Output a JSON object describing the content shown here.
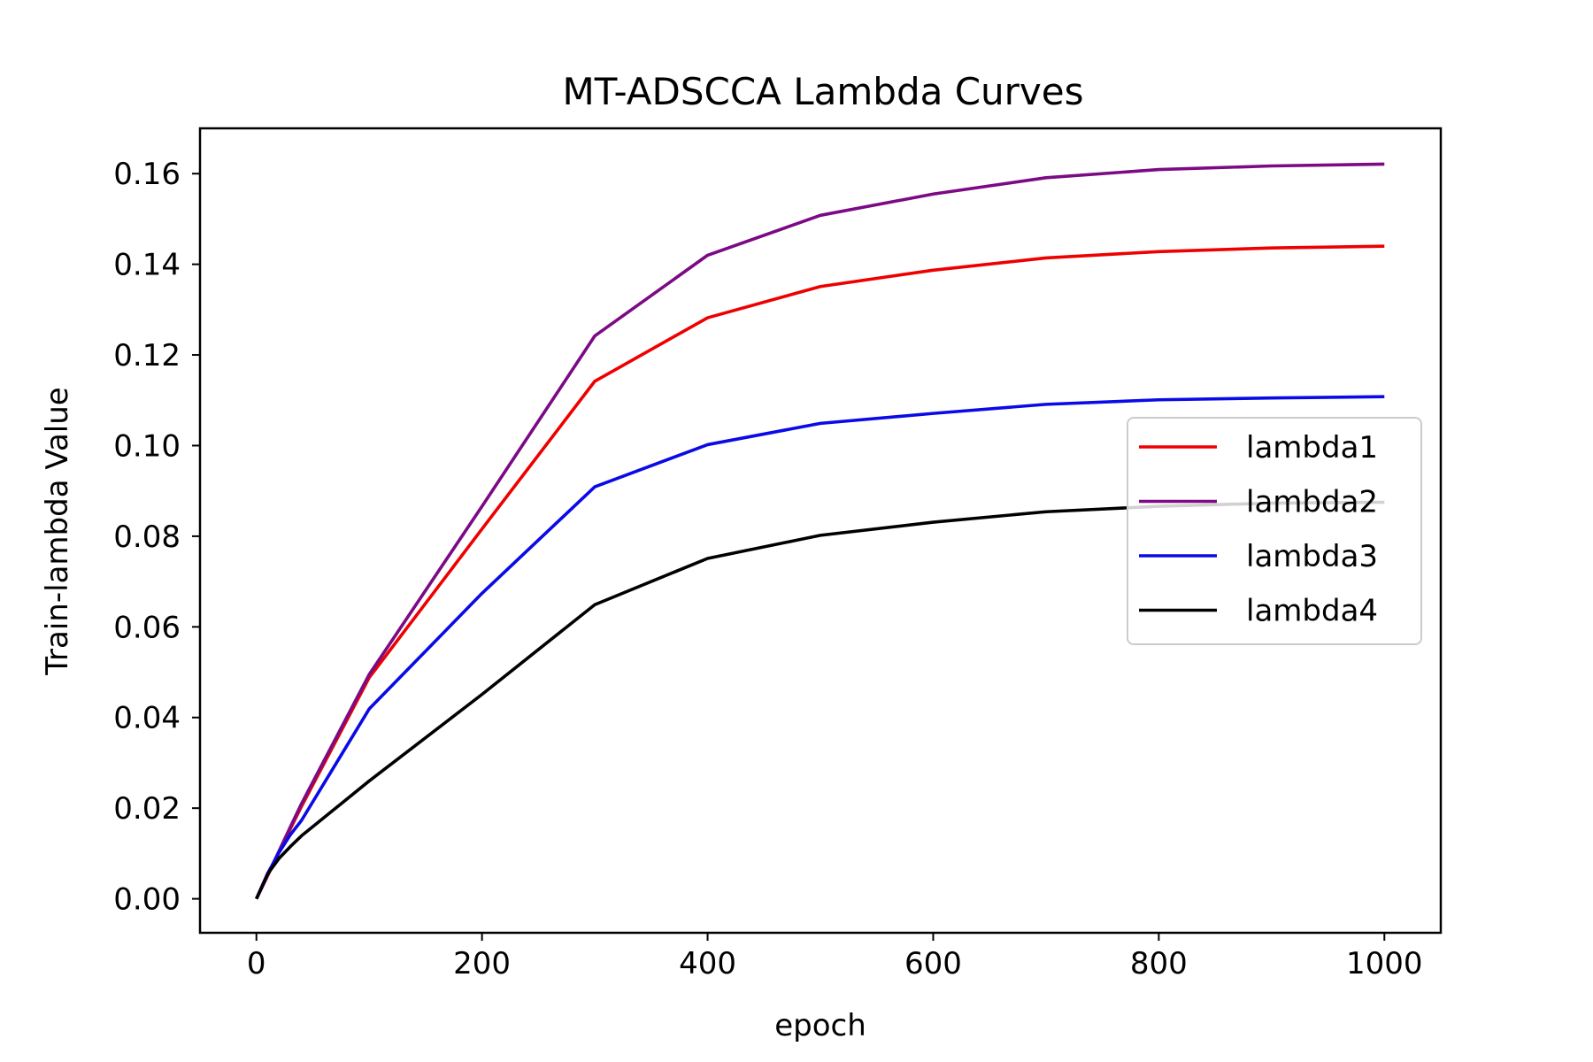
{
  "chart_data": {
    "type": "line",
    "title": "MT-ADSCCA Lambda Curves",
    "xlabel": "epoch",
    "ylabel": "Train-lambda Value",
    "xlim": [
      -50,
      1050
    ],
    "ylim": [
      -0.0075,
      0.17
    ],
    "xticks": [
      0,
      200,
      400,
      600,
      800,
      1000
    ],
    "xtick_labels": [
      "0",
      "200",
      "400",
      "600",
      "800",
      "1000"
    ],
    "yticks": [
      0.0,
      0.02,
      0.04,
      0.06,
      0.08,
      0.1,
      0.12,
      0.14,
      0.16
    ],
    "ytick_labels": [
      "0.00",
      "0.02",
      "0.04",
      "0.06",
      "0.08",
      "0.10",
      "0.12",
      "0.14",
      "0.16"
    ],
    "grid": false,
    "legend_position": "center-right",
    "x": [
      0,
      10,
      20,
      30,
      40,
      100,
      200,
      300,
      400,
      500,
      600,
      700,
      800,
      900,
      1000
    ],
    "series": [
      {
        "name": "lambda1",
        "color": "#ee0000",
        "values": [
          0.0,
          0.0051,
          0.0103,
          0.0154,
          0.0204,
          0.0488,
          0.0816,
          0.1142,
          0.1282,
          0.1351,
          0.1387,
          0.1414,
          0.1428,
          0.1436,
          0.144
        ]
      },
      {
        "name": "lambda2",
        "color": "#7b0a84",
        "values": [
          0.0,
          0.0052,
          0.0105,
          0.0158,
          0.021,
          0.0495,
          0.0866,
          0.1242,
          0.142,
          0.1508,
          0.1555,
          0.1591,
          0.1609,
          0.1617,
          0.1621
        ]
      },
      {
        "name": "lambda3",
        "color": "#0a0ae6",
        "values": [
          0.0,
          0.0056,
          0.0102,
          0.0141,
          0.0173,
          0.0419,
          0.0674,
          0.0909,
          0.1002,
          0.1049,
          0.1071,
          0.1091,
          0.1101,
          0.1105,
          0.1108
        ]
      },
      {
        "name": "lambda4",
        "color": "#000000",
        "values": [
          0.0,
          0.0055,
          0.0089,
          0.0115,
          0.0139,
          0.026,
          0.0451,
          0.0649,
          0.0751,
          0.0802,
          0.0831,
          0.0854,
          0.0866,
          0.0873,
          0.0875
        ]
      }
    ]
  }
}
